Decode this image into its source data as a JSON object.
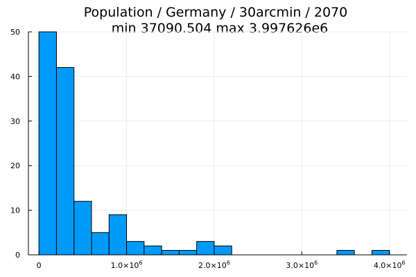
{
  "chart_data": {
    "type": "bar",
    "title_line1": "Population / Germany / 30arcmin / 2070",
    "title_line2": "min 37090.504  max 3.997626e6",
    "xlabel": "",
    "ylabel": "",
    "bin_edges": [
      0,
      200000,
      400000,
      600000,
      800000,
      1000000,
      1200000,
      1400000,
      1600000,
      1800000,
      2000000,
      2200000,
      2400000,
      2600000,
      2800000,
      3000000,
      3200000,
      3400000,
      3600000,
      3800000,
      4000000
    ],
    "values": [
      50,
      42,
      12,
      5,
      9,
      3,
      2,
      1,
      1,
      3,
      2,
      0,
      0,
      0,
      0,
      0,
      0,
      1,
      0,
      1
    ],
    "xlim": [
      -120000,
      4200000
    ],
    "ylim": [
      0,
      50
    ],
    "x_ticks": [
      {
        "value": 0,
        "mantissa": "0",
        "exp": ""
      },
      {
        "value": 1000000,
        "mantissa": "1.0×10",
        "exp": "6"
      },
      {
        "value": 2000000,
        "mantissa": "2.0×10",
        "exp": "6"
      },
      {
        "value": 3000000,
        "mantissa": "3.0×10",
        "exp": "6"
      },
      {
        "value": 4000000,
        "mantissa": "4.0×10",
        "exp": "6"
      }
    ],
    "y_ticks": [
      0,
      10,
      20,
      30,
      40,
      50
    ],
    "grid": true,
    "legend": "none",
    "bar_color": "#009af9",
    "edge_color": "#000000"
  }
}
